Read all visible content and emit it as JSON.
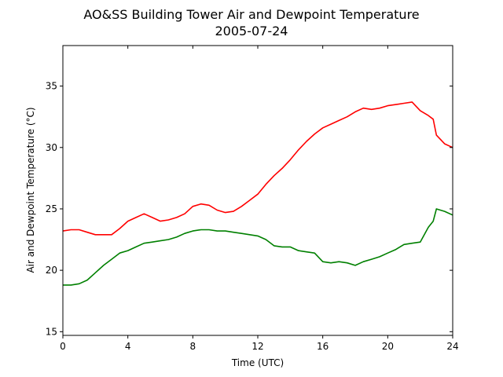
{
  "chart_data": {
    "type": "line",
    "title": "AO&SS Building Tower Air and Dewpoint Temperature",
    "subtitle": "2005-07-24",
    "xlabel": "Time (UTC)",
    "ylabel": "Air and Dewpoint Temperature (°C)",
    "xlim": [
      0,
      24
    ],
    "ylim": [
      14.7,
      38.3
    ],
    "xticks": [
      0,
      4,
      8,
      12,
      16,
      20,
      24
    ],
    "yticks": [
      15,
      20,
      25,
      30,
      35
    ],
    "grid": false,
    "legend": "none",
    "series": [
      {
        "color": "#ff0000",
        "x": [
          0,
          0.5,
          1,
          1.5,
          2,
          2.5,
          3,
          3.5,
          4,
          4.5,
          5,
          5.5,
          6,
          6.5,
          7,
          7.5,
          8,
          8.5,
          9,
          9.5,
          10,
          10.5,
          11,
          11.5,
          12,
          12.5,
          13,
          13.5,
          14,
          14.5,
          15,
          15.5,
          16,
          16.5,
          17,
          17.5,
          18,
          18.5,
          19,
          19.5,
          20,
          20.5,
          21,
          21.5,
          22,
          22.5,
          22.8,
          23,
          23.5,
          24
        ],
        "y": [
          23.2,
          23.3,
          23.3,
          23.1,
          22.9,
          22.9,
          22.9,
          23.4,
          24.0,
          24.3,
          24.6,
          24.3,
          24.0,
          24.1,
          24.3,
          24.6,
          25.2,
          25.4,
          25.3,
          24.9,
          24.7,
          24.8,
          25.2,
          25.7,
          26.2,
          27.0,
          27.7,
          28.3,
          29.0,
          29.8,
          30.5,
          31.1,
          31.6,
          31.9,
          32.2,
          32.5,
          32.9,
          33.2,
          33.1,
          33.2,
          33.4,
          33.5,
          33.6,
          33.7,
          33.0,
          32.6,
          32.3,
          31.0,
          30.3,
          30.0
        ]
      },
      {
        "color": "#008000",
        "x": [
          0,
          0.5,
          1,
          1.5,
          2,
          2.5,
          3,
          3.5,
          4,
          4.5,
          5,
          5.5,
          6,
          6.5,
          7,
          7.5,
          8,
          8.5,
          9,
          9.5,
          10,
          10.5,
          11,
          11.5,
          12,
          12.5,
          13,
          13.5,
          14,
          14.5,
          15,
          15.5,
          16,
          16.5,
          17,
          17.5,
          18,
          18.5,
          19,
          19.5,
          20,
          20.5,
          21,
          21.5,
          22,
          22.5,
          22.8,
          23,
          23.5,
          24
        ],
        "y": [
          18.8,
          18.8,
          18.9,
          19.2,
          19.8,
          20.4,
          20.9,
          21.4,
          21.6,
          21.9,
          22.2,
          22.3,
          22.4,
          22.5,
          22.7,
          23.0,
          23.2,
          23.3,
          23.3,
          23.2,
          23.2,
          23.1,
          23.0,
          22.9,
          22.8,
          22.5,
          22.0,
          21.9,
          21.9,
          21.6,
          21.5,
          21.4,
          20.7,
          20.6,
          20.7,
          20.6,
          20.4,
          20.7,
          20.9,
          21.1,
          21.4,
          21.7,
          22.1,
          22.2,
          22.3,
          23.5,
          24.0,
          25.0,
          24.8,
          24.5
        ]
      }
    ]
  }
}
